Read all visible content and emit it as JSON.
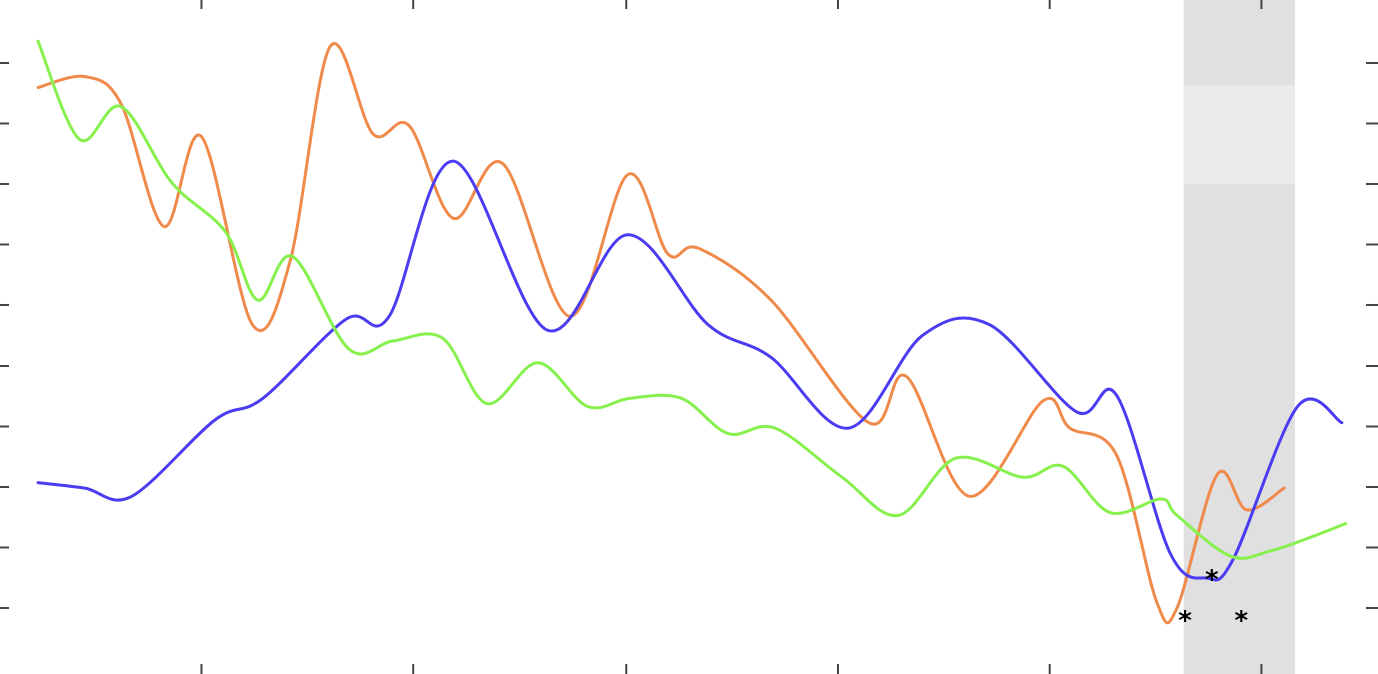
{
  "chart_data": {
    "type": "line",
    "title": "",
    "xlabel": "",
    "ylabel": "",
    "xlim": [
      0,
      1
    ],
    "ylim": [
      0,
      1
    ],
    "grid": false,
    "legend": "none",
    "x_ticks": [
      0.122,
      0.28,
      0.439,
      0.597,
      0.755,
      0.913
    ],
    "y_ticks": [
      0.0,
      0.111,
      0.222,
      0.333,
      0.444,
      0.556,
      0.667,
      0.778,
      0.889,
      1.0
    ],
    "highlight_band": {
      "x_range": [
        0.855,
        0.938
      ],
      "color": "#e0e0e0",
      "light_band_y_range": [
        0.778,
        0.96
      ],
      "light_color": "#ebebeb"
    },
    "series": [
      {
        "color": "#f5a623",
        "stroke": "#f08a4b",
        "points": [
          [
            0.0,
            0.955
          ],
          [
            0.035,
            0.975
          ],
          [
            0.062,
            0.925
          ],
          [
            0.094,
            0.7
          ],
          [
            0.122,
            0.865
          ],
          [
            0.16,
            0.52
          ],
          [
            0.188,
            0.635
          ],
          [
            0.218,
            1.03
          ],
          [
            0.25,
            0.87
          ],
          [
            0.277,
            0.885
          ],
          [
            0.31,
            0.715
          ],
          [
            0.347,
            0.815
          ],
          [
            0.397,
            0.535
          ],
          [
            0.44,
            0.795
          ],
          [
            0.47,
            0.65
          ],
          [
            0.493,
            0.66
          ],
          [
            0.547,
            0.565
          ],
          [
            0.62,
            0.34
          ],
          [
            0.648,
            0.425
          ],
          [
            0.695,
            0.205
          ],
          [
            0.75,
            0.38
          ],
          [
            0.77,
            0.33
          ],
          [
            0.805,
            0.28
          ],
          [
            0.835,
            0.01
          ],
          [
            0.85,
            0.0
          ],
          [
            0.88,
            0.245
          ],
          [
            0.902,
            0.18
          ],
          [
            0.93,
            0.22
          ]
        ]
      },
      {
        "color": "#3b2bff",
        "stroke": "#4a3cf2",
        "points": [
          [
            0.0,
            0.23
          ],
          [
            0.035,
            0.22
          ],
          [
            0.07,
            0.205
          ],
          [
            0.132,
            0.345
          ],
          [
            0.168,
            0.385
          ],
          [
            0.23,
            0.53
          ],
          [
            0.262,
            0.535
          ],
          [
            0.31,
            0.82
          ],
          [
            0.38,
            0.51
          ],
          [
            0.44,
            0.685
          ],
          [
            0.5,
            0.52
          ],
          [
            0.547,
            0.46
          ],
          [
            0.605,
            0.33
          ],
          [
            0.66,
            0.5
          ],
          [
            0.71,
            0.52
          ],
          [
            0.775,
            0.36
          ],
          [
            0.805,
            0.39
          ],
          [
            0.845,
            0.1
          ],
          [
            0.872,
            0.055
          ],
          [
            0.892,
            0.09
          ],
          [
            0.94,
            0.37
          ],
          [
            0.973,
            0.34
          ]
        ]
      },
      {
        "color": "#7dff3a",
        "stroke": "#86f04d",
        "points": [
          [
            0.0,
            1.04
          ],
          [
            0.031,
            0.86
          ],
          [
            0.062,
            0.92
          ],
          [
            0.1,
            0.78
          ],
          [
            0.14,
            0.69
          ],
          [
            0.164,
            0.565
          ],
          [
            0.19,
            0.645
          ],
          [
            0.232,
            0.475
          ],
          [
            0.265,
            0.49
          ],
          [
            0.302,
            0.495
          ],
          [
            0.335,
            0.375
          ],
          [
            0.373,
            0.45
          ],
          [
            0.41,
            0.37
          ],
          [
            0.442,
            0.385
          ],
          [
            0.48,
            0.385
          ],
          [
            0.515,
            0.32
          ],
          [
            0.55,
            0.33
          ],
          [
            0.6,
            0.24
          ],
          [
            0.642,
            0.17
          ],
          [
            0.685,
            0.275
          ],
          [
            0.735,
            0.24
          ],
          [
            0.765,
            0.26
          ],
          [
            0.8,
            0.175
          ],
          [
            0.838,
            0.2
          ],
          [
            0.85,
            0.17
          ],
          [
            0.89,
            0.095
          ],
          [
            0.92,
            0.105
          ],
          [
            0.95,
            0.13
          ],
          [
            0.976,
            0.155
          ]
        ]
      }
    ],
    "markers": [
      {
        "symbol": "*",
        "x": 0.856,
        "y": -0.02
      },
      {
        "symbol": "*",
        "x": 0.876,
        "y": 0.055
      },
      {
        "symbol": "*",
        "x": 0.898,
        "y": -0.02
      }
    ]
  }
}
